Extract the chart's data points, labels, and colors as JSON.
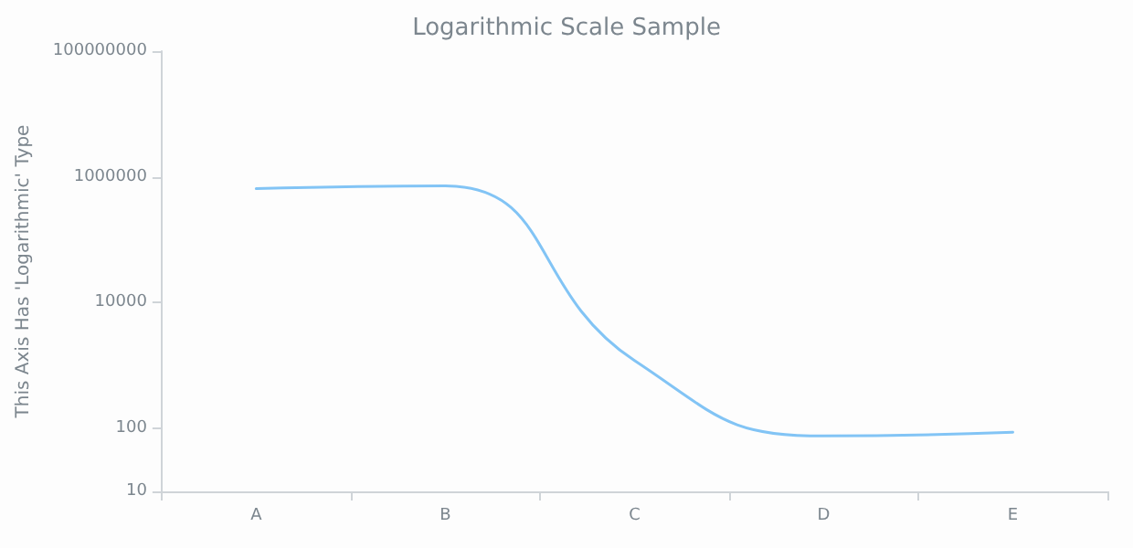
{
  "chart_data": {
    "type": "line",
    "title": "Logarithmic Scale Sample",
    "ylabel": "This Axis Has 'Logarithmic' Type",
    "categories": [
      "A",
      "B",
      "C",
      "D",
      "E"
    ],
    "series": [
      {
        "color": "#82c4f5",
        "values": [
          650000,
          720000,
          1200,
          76,
          87
        ]
      }
    ],
    "log": "y",
    "ylim": [
      10,
      100000000
    ],
    "yticks": [
      10,
      100,
      10000,
      1000000,
      100000000
    ],
    "grid": false,
    "marker": "none",
    "line_style": "solid"
  }
}
